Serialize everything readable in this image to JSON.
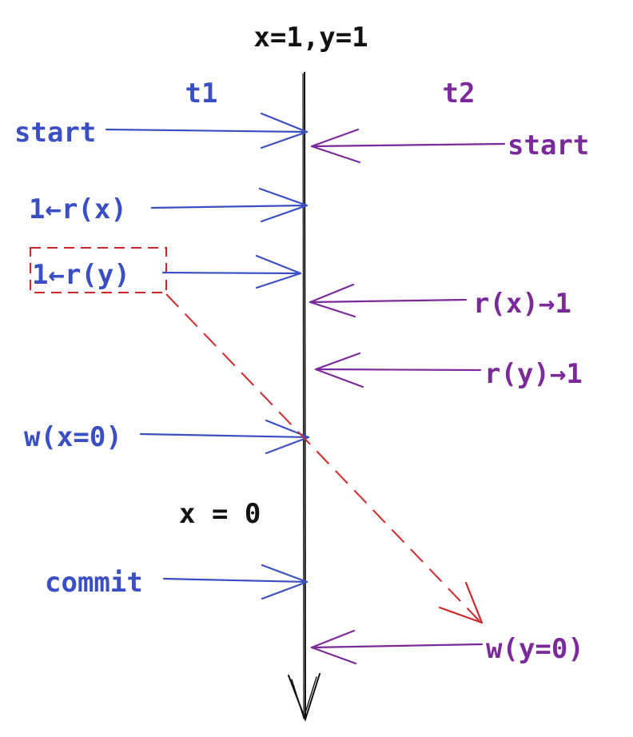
{
  "header": {
    "initial_state": "x=1,y=1"
  },
  "threads": {
    "t1": "t1",
    "t2": "t2"
  },
  "t1_ops": {
    "start": "start",
    "read_x": "1←r(x)",
    "read_y": "1←r(y)",
    "write_x": "w(x=0)",
    "commit": "commit"
  },
  "t2_ops": {
    "start": "start",
    "read_x": "r(x)→1",
    "read_y": "r(y)→1",
    "write_y": "w(y=0)"
  },
  "mid_state": "x = 0",
  "colors": {
    "t1": "#3b4fc4",
    "t2": "#7b2a9a",
    "timeline": "#111111",
    "conflict": "#cc2a2a"
  }
}
